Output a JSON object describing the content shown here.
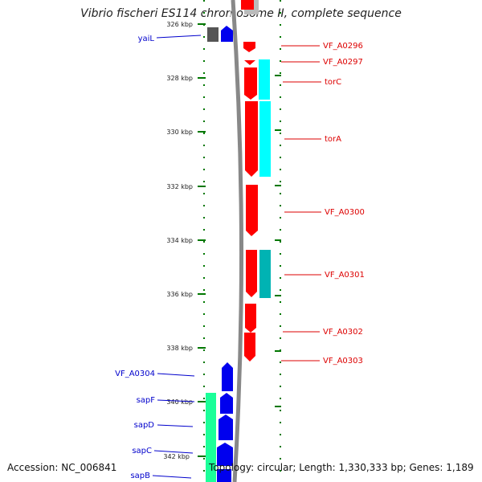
{
  "title": "Vibrio fischeri ES114 chromosome II, complete sequence",
  "accession": "Accession: NC_006841",
  "summary": "Topology: circular; Length: 1,330,333 bp; Genes: 1,189",
  "colors": {
    "forward_cds": "#ff0000",
    "reverse_cds": "#0000ff",
    "cog_cyan": "#00ffff",
    "cog_teal": "#00b3b3",
    "cog_green": "#1aff99",
    "cog_gray": "#555555",
    "backbone": "#888888",
    "tick": "#007700"
  },
  "scale": {
    "unit": "kbp",
    "ticks": [
      "326 kbp",
      "328 kbp",
      "330 kbp",
      "332 kbp",
      "334 kbp",
      "336 kbp",
      "338 kbp",
      "340 kbp",
      "342 kbp"
    ]
  },
  "forward_genes": [
    "VF_A0296",
    "VF_A0297",
    "torC",
    "torA",
    "VF_A0300",
    "VF_A0301",
    "VF_A0302",
    "VF_A0303"
  ],
  "reverse_genes": [
    "yaiL",
    "VF_A0304",
    "sapF",
    "sapD",
    "sapC",
    "sapB"
  ]
}
